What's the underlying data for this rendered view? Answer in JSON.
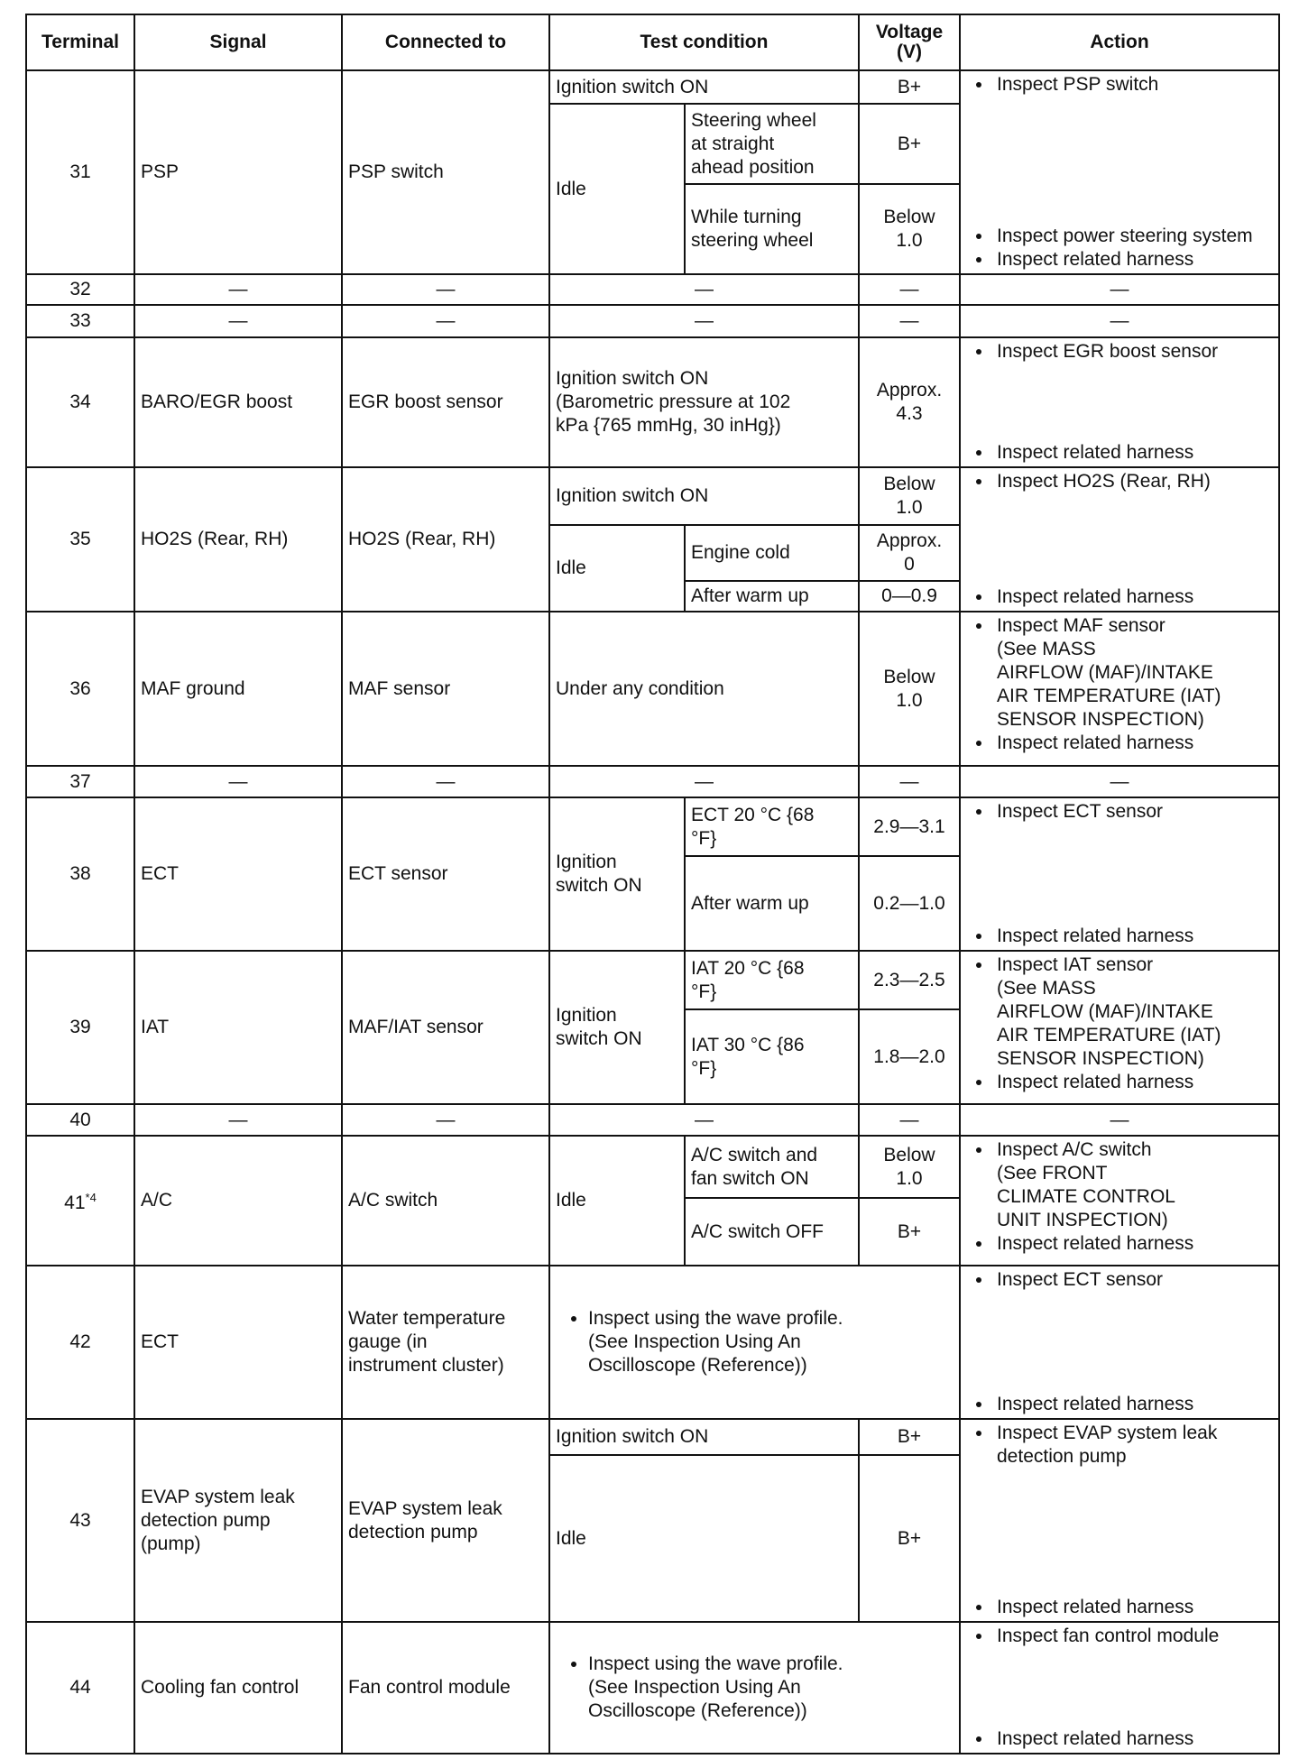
{
  "headers": [
    "Terminal",
    "Signal",
    "Connected to",
    "Test condition",
    "Voltage\n(V)",
    "Action"
  ],
  "rows": [
    {
      "terminal": "31",
      "signal": "PSP",
      "connected_to": "PSP switch",
      "tests": [
        {
          "cond": "Ignition switch ON",
          "voltage": "B+"
        },
        {
          "group": "Idle",
          "items": [
            {
              "cond": "Steering wheel\nat straight\nahead position",
              "voltage": "B+"
            },
            {
              "cond": "While turning\nsteering wheel",
              "voltage": "Below\n1.0"
            }
          ]
        }
      ],
      "action": {
        "top": [
          "Inspect PSP switch"
        ],
        "bottom": [
          "Inspect power steering system",
          "Inspect related harness"
        ]
      }
    },
    {
      "terminal": "32",
      "signal": "—",
      "connected_to": "—",
      "dash": true,
      "tests": [
        {
          "cond": "—",
          "voltage": "—"
        }
      ],
      "action": {
        "top": [
          "—"
        ],
        "bottom": []
      }
    },
    {
      "terminal": "33",
      "signal": "—",
      "connected_to": "—",
      "dash": true,
      "tests": [
        {
          "cond": "—",
          "voltage": "—"
        }
      ],
      "action": {
        "top": [
          "—"
        ],
        "bottom": []
      }
    },
    {
      "terminal": "34",
      "signal": "BARO/EGR boost",
      "connected_to": "EGR boost sensor",
      "tests": [
        {
          "cond": "Ignition switch ON\n(Barometric pressure at 102\nkPa {765 mmHg, 30 inHg})",
          "voltage": "Approx.\n4.3"
        }
      ],
      "action": {
        "top": [
          "Inspect EGR boost sensor"
        ],
        "bottom": [
          "Inspect related harness"
        ]
      }
    },
    {
      "terminal": "35",
      "signal": "HO2S (Rear, RH)",
      "connected_to": "HO2S (Rear, RH)",
      "tests": [
        {
          "cond": "Ignition switch ON",
          "voltage": "Below\n1.0"
        },
        {
          "group": "Idle",
          "items": [
            {
              "cond": "Engine cold",
              "voltage": "Approx.\n0"
            },
            {
              "cond": "After warm up",
              "voltage": "0—0.9"
            }
          ]
        }
      ],
      "action": {
        "top": [
          "Inspect HO2S (Rear, RH)"
        ],
        "bottom": [
          "Inspect related harness"
        ]
      }
    },
    {
      "terminal": "36",
      "signal": "MAF ground",
      "connected_to": "MAF sensor",
      "tests": [
        {
          "cond": "Under any condition",
          "voltage": "Below\n1.0"
        }
      ],
      "action": {
        "top": [
          "Inspect MAF sensor\n(See  MASS\nAIRFLOW (MAF)/INTAKE\nAIR TEMPERATURE (IAT)\nSENSOR INSPECTION)",
          "Inspect related harness"
        ],
        "bottom": []
      }
    },
    {
      "terminal": "37",
      "signal": "—",
      "connected_to": "—",
      "dash": true,
      "tests": [
        {
          "cond": "—",
          "voltage": "—"
        }
      ],
      "action": {
        "top": [
          "—"
        ],
        "bottom": []
      }
    },
    {
      "terminal": "38",
      "signal": "ECT",
      "connected_to": "ECT sensor",
      "tests": [
        {
          "group": "Ignition\nswitch ON",
          "items": [
            {
              "cond": "ECT 20 °C {68\n°F}",
              "voltage": "2.9—3.1"
            },
            {
              "cond": "After warm up",
              "voltage": "0.2—1.0"
            }
          ]
        }
      ],
      "action": {
        "top": [
          "Inspect ECT sensor"
        ],
        "bottom": [
          "Inspect related harness"
        ]
      }
    },
    {
      "terminal": "39",
      "signal": "IAT",
      "connected_to": "MAF/IAT sensor",
      "tests": [
        {
          "group": "Ignition\nswitch ON",
          "items": [
            {
              "cond": "IAT 20 °C {68\n°F}",
              "voltage": "2.3—2.5"
            },
            {
              "cond": "IAT 30 °C {86\n°F}",
              "voltage": "1.8—2.0"
            }
          ]
        }
      ],
      "action": {
        "top": [
          "Inspect IAT sensor\n(See  MASS\nAIRFLOW (MAF)/INTAKE\nAIR TEMPERATURE (IAT)\nSENSOR INSPECTION)",
          "Inspect related harness"
        ],
        "bottom": []
      }
    },
    {
      "terminal": "40",
      "signal": "—",
      "connected_to": "—",
      "dash": true,
      "tests": [
        {
          "cond": "—",
          "voltage": "—"
        }
      ],
      "action": {
        "top": [
          "—"
        ],
        "bottom": []
      }
    },
    {
      "terminal": "41",
      "terminal_sup": "*4",
      "signal": "A/C",
      "connected_to": "A/C switch",
      "tests": [
        {
          "group": "Idle",
          "items": [
            {
              "cond": "A/C switch and\nfan switch ON",
              "voltage": "Below\n1.0"
            },
            {
              "cond": "A/C switch OFF",
              "voltage": "B+"
            }
          ]
        }
      ],
      "action": {
        "top": [
          "Inspect A/C switch\n(See  FRONT\nCLIMATE CONTROL\nUNIT INSPECTION)",
          "Inspect related harness"
        ],
        "bottom": []
      }
    },
    {
      "terminal": "42",
      "signal": "ECT",
      "connected_to": "Water temperature\ngauge (in\ninstrument cluster)",
      "note": "Inspect using the wave profile.\n(See Inspection Using An\nOscilloscope (Reference))",
      "action": {
        "top": [
          "Inspect ECT sensor"
        ],
        "bottom": [
          "Inspect related harness"
        ]
      }
    },
    {
      "terminal": "43",
      "signal": "EVAP system leak\ndetection pump\n(pump)",
      "connected_to": "EVAP system leak\ndetection pump",
      "tests": [
        {
          "cond": "Ignition switch ON",
          "voltage": "B+"
        },
        {
          "cond": "Idle",
          "voltage": "B+"
        }
      ],
      "action": {
        "top": [
          "Inspect EVAP system leak\ndetection pump"
        ],
        "bottom": [
          "Inspect related harness"
        ]
      }
    },
    {
      "terminal": "44",
      "signal": "Cooling fan control",
      "connected_to": "Fan control module",
      "note": "Inspect using the wave profile.\n(See  Inspection Using An\nOscilloscope (Reference))",
      "action": {
        "top": [
          "Inspect fan control module"
        ],
        "bottom": [
          "Inspect related harness"
        ]
      }
    }
  ]
}
